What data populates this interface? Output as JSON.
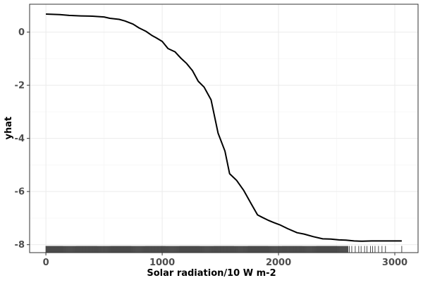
{
  "chart_data": {
    "type": "line",
    "title": "",
    "xlabel": "Solar radiation/10 W m-2",
    "ylabel": "yhat",
    "xlim": [
      -140,
      3200
    ],
    "ylim": [
      -8.3,
      1.05
    ],
    "grid": true,
    "legend": "none",
    "x_ticks": [
      0,
      1000,
      2000,
      3000
    ],
    "x_tick_labels": [
      "0",
      "1000",
      "2000",
      "3000"
    ],
    "y_ticks": [
      0,
      -2,
      -4,
      -6,
      -8
    ],
    "y_tick_labels": [
      "0",
      "-2",
      "-4",
      "-6",
      "-8"
    ],
    "series": [
      {
        "x": [
          0,
          120,
          200,
          300,
          400,
          500,
          550,
          630,
          680,
          750,
          800,
          860,
          910,
          950,
          1000,
          1050,
          1110,
          1160,
          1210,
          1260,
          1310,
          1360,
          1420,
          1480,
          1540,
          1580,
          1640,
          1700,
          1770,
          1820,
          1860,
          1910,
          1960,
          2010,
          2080,
          2160,
          2220,
          2300,
          2380,
          2450,
          2520,
          2580,
          2650,
          2720,
          2800,
          2900,
          3000,
          3060
        ],
        "y": [
          0.68,
          0.66,
          0.63,
          0.61,
          0.6,
          0.57,
          0.52,
          0.48,
          0.42,
          0.3,
          0.16,
          0.03,
          -0.12,
          -0.22,
          -0.35,
          -0.62,
          -0.74,
          -0.98,
          -1.18,
          -1.45,
          -1.85,
          -2.07,
          -2.55,
          -3.8,
          -4.48,
          -5.33,
          -5.58,
          -5.95,
          -6.5,
          -6.88,
          -6.97,
          -7.08,
          -7.17,
          -7.25,
          -7.4,
          -7.55,
          -7.6,
          -7.7,
          -7.78,
          -7.79,
          -7.82,
          -7.83,
          -7.86,
          -7.87,
          -7.86,
          -7.86,
          -7.86,
          -7.86
        ]
      }
    ],
    "rug": {
      "dense_ranges": [
        [
          0,
          2600
        ]
      ],
      "x": [
        2610,
        2630,
        2660,
        2690,
        2710,
        2740,
        2760,
        2790,
        2810,
        2830,
        2860,
        2890,
        2920,
        3060
      ]
    }
  }
}
